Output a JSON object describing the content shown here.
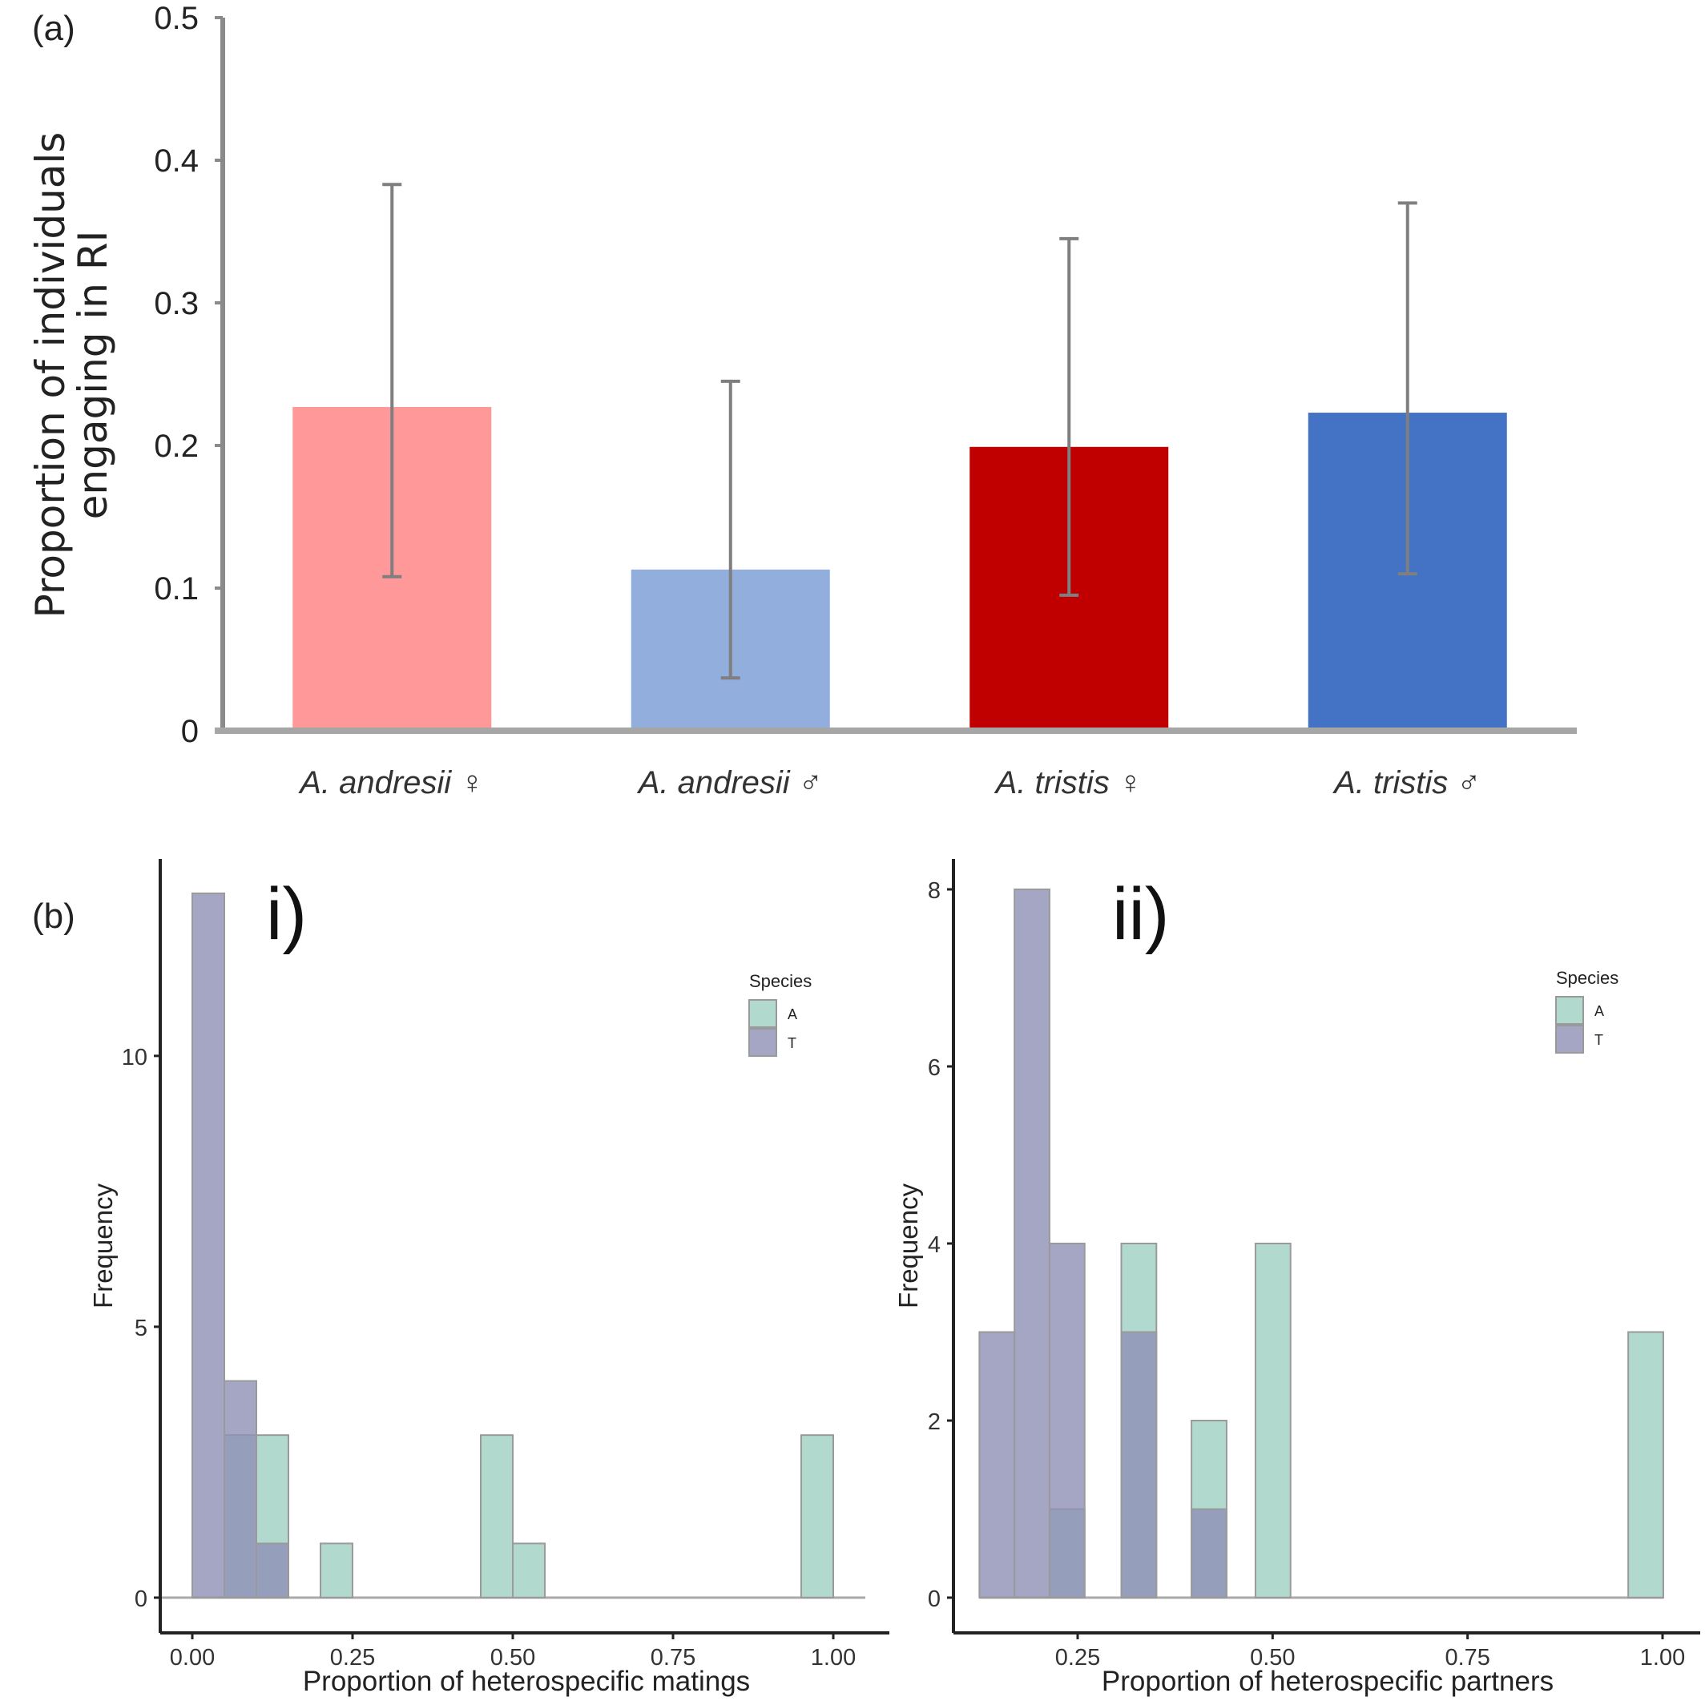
{
  "chart_data": [
    {
      "panel": "(a)",
      "type": "bar",
      "ylabel_line1": "Proportion of individuals",
      "ylabel_line2": "engaging in RI",
      "ylim": [
        0,
        0.5
      ],
      "yticks": [
        "0",
        "0.1",
        "0.2",
        "0.3",
        "0.4",
        "0.5"
      ],
      "categories": [
        "A. andresii ♀",
        "A. andresii ♂",
        "A. tristis ♀",
        "A. tristis ♂"
      ],
      "values": [
        0.227,
        0.113,
        0.199,
        0.223
      ],
      "error_low": [
        0.108,
        0.037,
        0.095,
        0.11
      ],
      "error_high": [
        0.383,
        0.245,
        0.345,
        0.37
      ],
      "colors": [
        "#ff9999",
        "#92aedd",
        "#c00000",
        "#4472c4"
      ],
      "grid": false
    },
    {
      "panel": "(b)",
      "sublabel": "i)",
      "type": "bar",
      "subtype": "histogram",
      "xlabel": "Proportion of heterospecific matings",
      "ylabel": "Frequency",
      "xlim": [
        -0.05,
        1.05
      ],
      "ylim": [
        0,
        13
      ],
      "xticks": [
        "0.00",
        "0.25",
        "0.50",
        "0.75",
        "1.00"
      ],
      "yticks": [
        "0",
        "5",
        "10"
      ],
      "bin_width": 0.05,
      "legend_title": "Species",
      "legend_position": "top-right",
      "series": [
        {
          "name": "A",
          "color": "#9ecfc2",
          "bins": [
            [
              0.05,
              3
            ],
            [
              0.1,
              3
            ],
            [
              0.2,
              1
            ],
            [
              0.45,
              3
            ],
            [
              0.5,
              1
            ],
            [
              0.95,
              3
            ]
          ]
        },
        {
          "name": "T",
          "color": "#8f8fb5",
          "bins": [
            [
              0.0,
              13
            ],
            [
              0.05,
              4
            ],
            [
              0.1,
              1
            ]
          ]
        }
      ],
      "grid": false
    },
    {
      "panel": "(b)",
      "sublabel": "ii)",
      "type": "bar",
      "subtype": "histogram",
      "xlabel": "Proportion of heterospecific partners",
      "ylabel": "Frequency",
      "xlim": [
        0.1,
        1.0
      ],
      "ylim": [
        0,
        8
      ],
      "xticks": [
        "0.25",
        "0.50",
        "0.75",
        "1.00"
      ],
      "yticks": [
        "0",
        "2",
        "4",
        "6",
        "8"
      ],
      "bin_width": 0.045,
      "legend_title": "Species",
      "legend_position": "top-right",
      "series": [
        {
          "name": "A",
          "color": "#9ecfc2",
          "bins": [
            [
              0.214,
              1
            ],
            [
              0.306,
              4
            ],
            [
              0.396,
              2
            ],
            [
              0.478,
              4
            ],
            [
              0.956,
              3
            ]
          ]
        },
        {
          "name": "T",
          "color": "#8f8fb5",
          "bins": [
            [
              0.124,
              3
            ],
            [
              0.169,
              8
            ],
            [
              0.214,
              4
            ],
            [
              0.306,
              3
            ],
            [
              0.396,
              1
            ]
          ]
        }
      ],
      "grid": false
    }
  ]
}
